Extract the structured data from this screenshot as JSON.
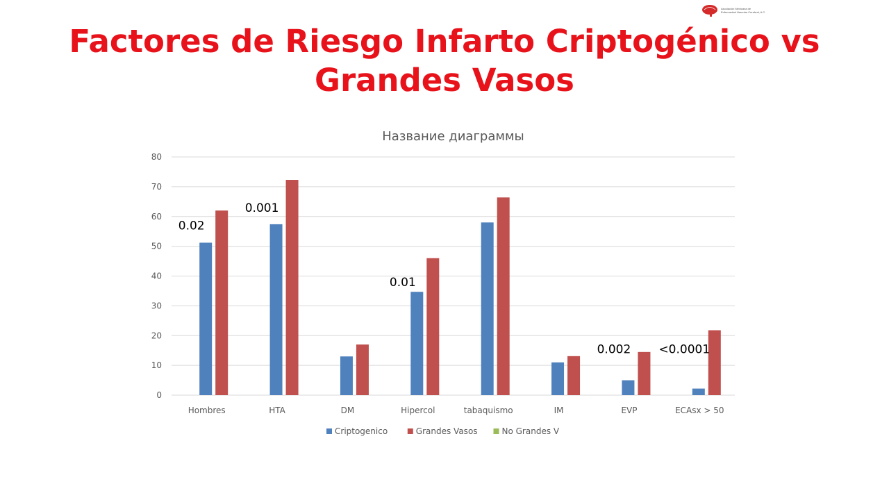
{
  "slide": {
    "title": "Factores de Riesgo Infarto Criptogénico vs Grandes Vasos"
  },
  "logo": {
    "name": "brain-logo",
    "line1": "Asociación Mexicana de",
    "line2": "Enfermedad Vascular Cerebral, A.C.",
    "color": "#d42a2a"
  },
  "chart_data": {
    "type": "bar",
    "title": "Название диаграммы",
    "xlabel": "",
    "ylabel": "",
    "ylim": [
      0,
      80
    ],
    "yticks": [
      0,
      10,
      20,
      30,
      40,
      50,
      60,
      70,
      80
    ],
    "grid": true,
    "legend_position": "bottom",
    "categories": [
      "Hombres",
      "HTA",
      "DM",
      "Hipercol",
      "tabaquismo",
      "IM",
      "EVP",
      "ECAsx > 50"
    ],
    "series": [
      {
        "name": "Criptogenico",
        "color": "#4f81bd",
        "values": [
          51.2,
          57.4,
          13.0,
          34.7,
          58.0,
          11.0,
          5.0,
          2.2
        ]
      },
      {
        "name": "Grandes Vasos",
        "color": "#c0504d",
        "values": [
          62.0,
          72.3,
          17.0,
          46.0,
          66.4,
          13.1,
          14.5,
          21.8
        ]
      },
      {
        "name": "No Grandes V",
        "color": "#9bbb59",
        "values": [
          0,
          0,
          0,
          0,
          0,
          0,
          0,
          0
        ]
      }
    ],
    "annotations": [
      {
        "text": "0.02",
        "category": "Hombres",
        "y": 57
      },
      {
        "text": "0.001",
        "category": "HTA",
        "y": 63
      },
      {
        "text": "0.01",
        "category": "Hipercol",
        "y": 38
      },
      {
        "text": "0.002",
        "category": "EVP",
        "y": 15.5
      },
      {
        "text": "<0.0001",
        "category": "ECAsx > 50",
        "y": 15.5
      }
    ]
  }
}
